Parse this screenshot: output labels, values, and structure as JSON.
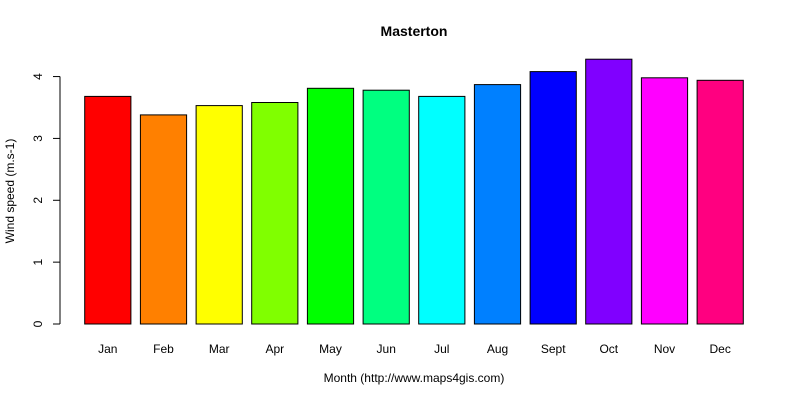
{
  "chart_data": {
    "type": "bar",
    "title": "Masterton",
    "xlabel": "Month (http://www.maps4gis.com)",
    "ylabel": "Wind speed (m.s-1)",
    "ylim": [
      0,
      4.3
    ],
    "yticks": [
      0,
      1,
      2,
      3,
      4
    ],
    "categories": [
      "Jan",
      "Feb",
      "Mar",
      "Apr",
      "May",
      "Jun",
      "Jul",
      "Aug",
      "Sept",
      "Oct",
      "Nov",
      "Dec"
    ],
    "values": [
      3.68,
      3.38,
      3.53,
      3.58,
      3.81,
      3.78,
      3.68,
      3.87,
      4.08,
      4.28,
      3.98,
      3.94
    ],
    "colors": [
      "#FF0000",
      "#FF8000",
      "#FFFF00",
      "#80FF00",
      "#00FF00",
      "#00FF80",
      "#00FFFF",
      "#0080FF",
      "#0000FF",
      "#8000FF",
      "#FF00FF",
      "#FF0080"
    ],
    "grid": false,
    "legend": "none"
  }
}
